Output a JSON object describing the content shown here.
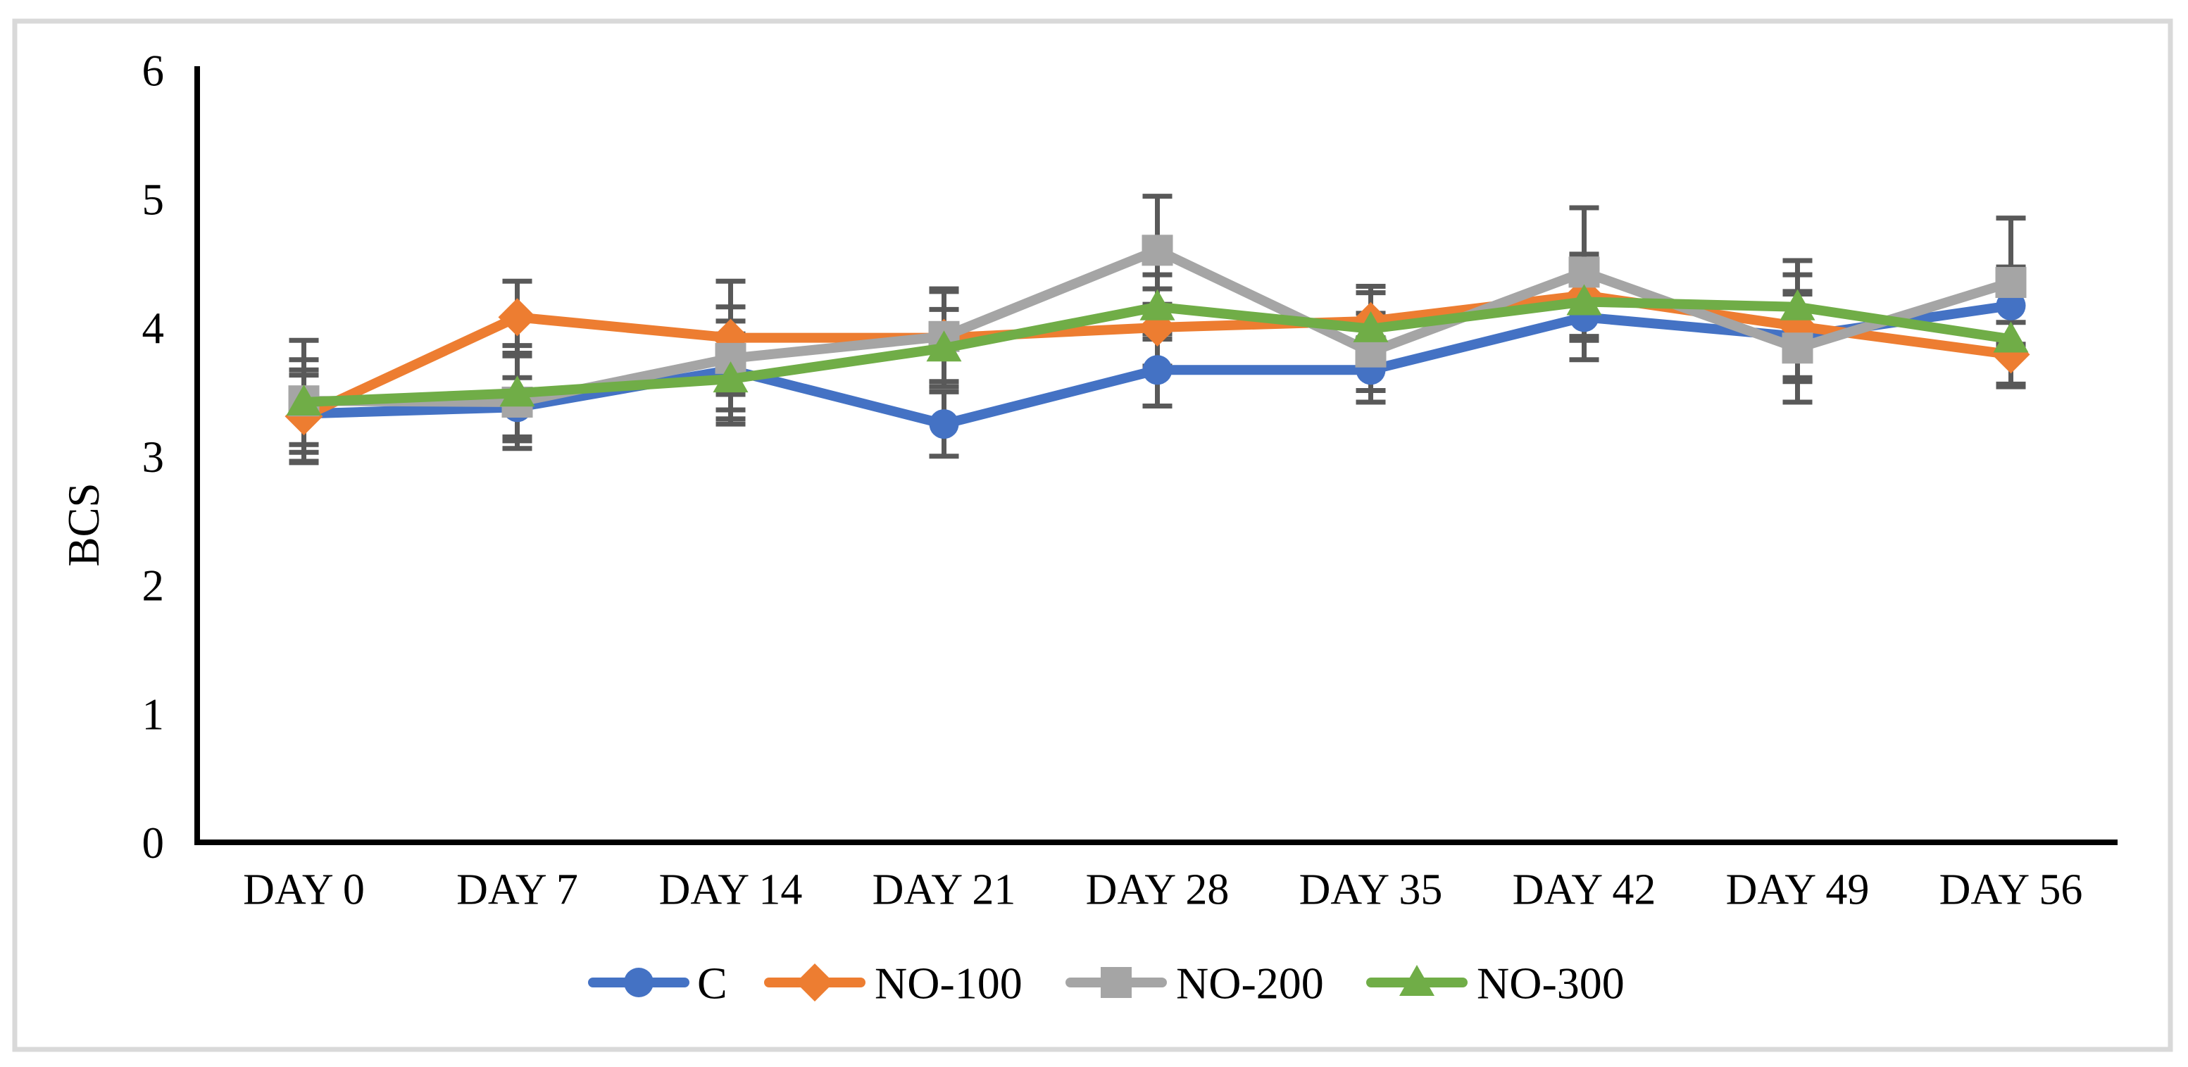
{
  "figure": {
    "background_color": "#FFFFFF",
    "border_color": "#D9D9D9",
    "axis_color": "#000000",
    "error_bar_color": "#595959"
  },
  "chart_data": {
    "type": "line",
    "title": "",
    "xlabel": "",
    "ylabel": "BCS",
    "ylim": [
      0,
      6
    ],
    "y_ticks": [
      0,
      1,
      2,
      3,
      4,
      5,
      6
    ],
    "grid": false,
    "legend_position": "bottom",
    "categories": [
      "DAY 0",
      "DAY 7",
      "DAY 14",
      "DAY 21",
      "DAY 28",
      "DAY 35",
      "DAY 42",
      "DAY 49",
      "DAY 56"
    ],
    "series": [
      {
        "name": "C",
        "color": "#4472C4",
        "marker": "circle",
        "values": [
          3.33,
          3.38,
          3.67,
          3.25,
          3.67,
          3.67,
          4.08,
          3.93,
          4.17
        ],
        "errors": [
          0.3,
          0.23,
          0.38,
          0.25,
          0.28,
          0.25,
          0.33,
          0.35,
          0.3
        ]
      },
      {
        "name": "NO-100",
        "color": "#ED7D31",
        "marker": "diamond",
        "values": [
          3.31,
          4.08,
          3.92,
          3.92,
          4.0,
          4.05,
          4.25,
          4.01,
          3.79
        ],
        "errors": [
          0.36,
          0.28,
          0.44,
          0.38,
          0.3,
          0.27,
          0.32,
          0.4,
          0.25
        ]
      },
      {
        "name": "NO-200",
        "color": "#A5A5A5",
        "marker": "square",
        "values": [
          3.43,
          3.42,
          3.76,
          3.93,
          4.6,
          3.81,
          4.43,
          3.84,
          4.35
        ],
        "errors": [
          0.47,
          0.36,
          0.4,
          0.35,
          0.42,
          0.3,
          0.5,
          0.42,
          0.5
        ]
      },
      {
        "name": "NO-300",
        "color": "#70AD47",
        "marker": "triangle",
        "values": [
          3.42,
          3.49,
          3.6,
          3.84,
          4.16,
          3.99,
          4.2,
          4.16,
          3.91
        ],
        "errors": [
          0.33,
          0.37,
          0.35,
          0.3,
          0.25,
          0.28,
          0.3,
          0.36,
          0.35
        ]
      }
    ]
  }
}
